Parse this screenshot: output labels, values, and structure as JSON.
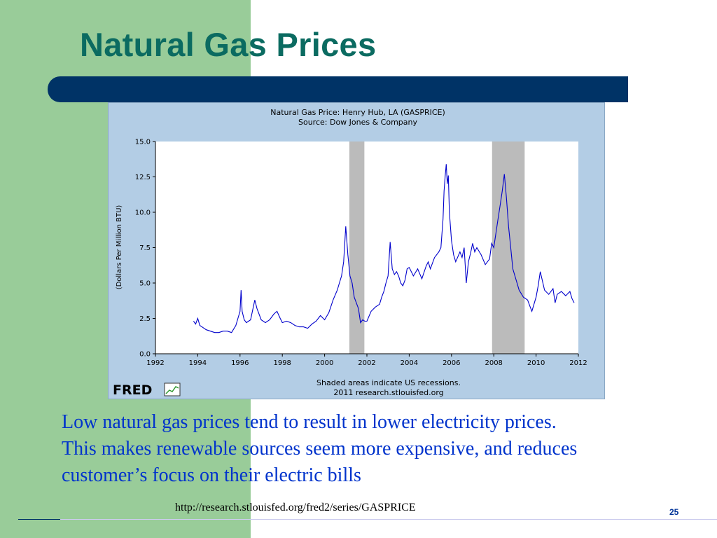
{
  "slide": {
    "title": "Natural Gas Prices",
    "caption_line1": "Low natural gas prices tend to result in lower electricity prices.",
    "caption_line2": "This makes renewable sources seem more expensive, and reduces",
    "caption_line3": "customer’s focus on their electric bills",
    "source_url": "http://research.stlouisfed.org/fred2/series/GASPRICE",
    "page_number": "25",
    "colors": {
      "title": "#0b6b61",
      "accent_band": "#99cc99",
      "title_bar": "#003366",
      "caption": "#0033cc"
    }
  },
  "chart_data": {
    "type": "line",
    "title": "Natural Gas Price: Henry Hub, LA (GASPRICE)",
    "subtitle": "Source: Dow Jones & Company",
    "ylabel": "(Dollars Per Million BTU)",
    "xlabel": "",
    "footer_line1": "Shaded areas indicate US recessions.",
    "footer_line2": "2011 research.stlouisfed.org",
    "logo_text": "FRED",
    "xlim": [
      1992,
      2012
    ],
    "ylim": [
      0,
      15
    ],
    "x_ticks": [
      "1992",
      "1994",
      "1996",
      "1998",
      "2000",
      "2002",
      "2004",
      "2006",
      "2008",
      "2010",
      "2012"
    ],
    "y_ticks": [
      "0.0",
      "2.5",
      "5.0",
      "7.5",
      "10.0",
      "12.5",
      "15.0"
    ],
    "grid": false,
    "line_color": "#0000cc",
    "recession_color": "#bbbbbb",
    "recessions": [
      [
        2001.17,
        2001.88
      ],
      [
        2007.92,
        2009.46
      ]
    ],
    "series": [
      {
        "x": [
          1993.8,
          1993.9,
          1994.0,
          1994.1,
          1994.2,
          1994.4,
          1994.6,
          1994.8,
          1995.0,
          1995.2,
          1995.4,
          1995.6,
          1995.8,
          1995.9,
          1996.0,
          1996.05,
          1996.1,
          1996.2,
          1996.3,
          1996.5,
          1996.7,
          1996.8,
          1996.9,
          1997.0,
          1997.2,
          1997.4,
          1997.6,
          1997.75,
          1997.9,
          1998.0,
          1998.2,
          1998.4,
          1998.6,
          1998.8,
          1999.0,
          1999.2,
          1999.4,
          1999.6,
          1999.8,
          2000.0,
          2000.2,
          2000.4,
          2000.6,
          2000.7,
          2000.8,
          2000.9,
          2001.0,
          2001.1,
          2001.2,
          2001.3,
          2001.4,
          2001.6,
          2001.7,
          2001.8,
          2001.9,
          2002.0,
          2002.2,
          2002.4,
          2002.6,
          2002.7,
          2002.8,
          2002.9,
          2003.0,
          2003.1,
          2003.2,
          2003.3,
          2003.4,
          2003.5,
          2003.6,
          2003.7,
          2003.8,
          2003.9,
          2004.0,
          2004.2,
          2004.4,
          2004.6,
          2004.8,
          2004.9,
          2005.0,
          2005.2,
          2005.4,
          2005.5,
          2005.6,
          2005.65,
          2005.7,
          2005.75,
          2005.8,
          2005.85,
          2005.9,
          2006.0,
          2006.1,
          2006.2,
          2006.4,
          2006.5,
          2006.6,
          2006.7,
          2006.8,
          2006.9,
          2007.0,
          2007.1,
          2007.2,
          2007.4,
          2007.6,
          2007.8,
          2007.9,
          2008.0,
          2008.1,
          2008.2,
          2008.3,
          2008.4,
          2008.5,
          2008.6,
          2008.7,
          2008.8,
          2008.9,
          2009.0,
          2009.2,
          2009.4,
          2009.6,
          2009.7,
          2009.8,
          2009.9,
          2010.0,
          2010.1,
          2010.2,
          2010.4,
          2010.6,
          2010.8,
          2010.9,
          2011.0,
          2011.2,
          2011.4,
          2011.6,
          2011.7,
          2011.8
        ],
        "y": [
          2.3,
          2.1,
          2.5,
          2.0,
          1.9,
          1.7,
          1.6,
          1.5,
          1.5,
          1.6,
          1.6,
          1.5,
          2.0,
          2.5,
          3.0,
          4.5,
          3.0,
          2.4,
          2.2,
          2.4,
          3.8,
          3.2,
          2.8,
          2.4,
          2.2,
          2.4,
          2.8,
          3.0,
          2.5,
          2.2,
          2.3,
          2.2,
          2.0,
          1.9,
          1.9,
          1.8,
          2.1,
          2.3,
          2.7,
          2.4,
          2.9,
          3.8,
          4.5,
          5.0,
          5.5,
          6.5,
          9.0,
          7.0,
          5.5,
          5.0,
          4.0,
          3.2,
          2.2,
          2.4,
          2.3,
          2.3,
          3.0,
          3.3,
          3.5,
          4.0,
          4.4,
          5.0,
          5.5,
          7.9,
          6.0,
          5.6,
          5.8,
          5.5,
          5.0,
          4.8,
          5.2,
          6.0,
          6.1,
          5.5,
          6.0,
          5.3,
          6.2,
          6.5,
          6.0,
          6.8,
          7.2,
          7.5,
          9.5,
          11.5,
          12.5,
          13.4,
          12.0,
          12.6,
          10.0,
          8.0,
          7.0,
          6.5,
          7.2,
          6.8,
          7.5,
          5.0,
          6.5,
          7.1,
          7.8,
          7.2,
          7.5,
          7.0,
          6.3,
          6.7,
          7.8,
          7.5,
          8.5,
          9.5,
          10.5,
          11.5,
          12.7,
          11.0,
          9.0,
          7.5,
          6.0,
          5.5,
          4.5,
          4.0,
          3.8,
          3.4,
          3.0,
          3.5,
          4.0,
          4.8,
          5.8,
          4.5,
          4.2,
          4.6,
          3.6,
          4.2,
          4.4,
          4.1,
          4.4,
          3.9,
          3.6
        ]
      }
    ]
  }
}
